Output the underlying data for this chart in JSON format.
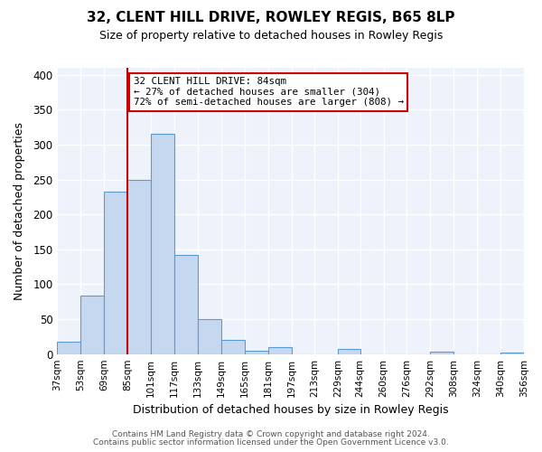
{
  "title": "32, CLENT HILL DRIVE, ROWLEY REGIS, B65 8LP",
  "subtitle": "Size of property relative to detached houses in Rowley Regis",
  "xlabel": "Distribution of detached houses by size in Rowley Regis",
  "ylabel": "Number of detached properties",
  "footer_line1": "Contains HM Land Registry data © Crown copyright and database right 2024.",
  "footer_line2": "Contains public sector information licensed under the Open Government Licence v3.0.",
  "bin_edges": [
    37,
    53,
    69,
    85,
    101,
    117,
    133,
    149,
    165,
    181,
    197,
    213,
    229,
    244,
    260,
    276,
    292,
    308,
    324,
    340,
    356
  ],
  "bin_labels": [
    "37sqm",
    "53sqm",
    "69sqm",
    "85sqm",
    "101sqm",
    "117sqm",
    "133sqm",
    "149sqm",
    "165sqm",
    "181sqm",
    "197sqm",
    "213sqm",
    "229sqm",
    "244sqm",
    "260sqm",
    "276sqm",
    "292sqm",
    "308sqm",
    "324sqm",
    "340sqm",
    "356sqm"
  ],
  "counts": [
    18,
    84,
    232,
    250,
    315,
    142,
    50,
    20,
    5,
    10,
    0,
    0,
    7,
    0,
    0,
    0,
    3,
    0,
    0,
    2
  ],
  "bar_color": "#c5d8f0",
  "bar_edge_color": "#5b9bd5",
  "vline_x": 85,
  "vline_color": "#cc0000",
  "annotation_line1": "32 CLENT HILL DRIVE: 84sqm",
  "annotation_line2": "← 27% of detached houses are smaller (304)",
  "annotation_line3": "72% of semi-detached houses are larger (808) →",
  "box_edgecolor": "#cc0000",
  "ylim": [
    0,
    410
  ],
  "yticks": [
    0,
    50,
    100,
    150,
    200,
    250,
    300,
    350,
    400
  ],
  "background_color": "#eef2fa"
}
